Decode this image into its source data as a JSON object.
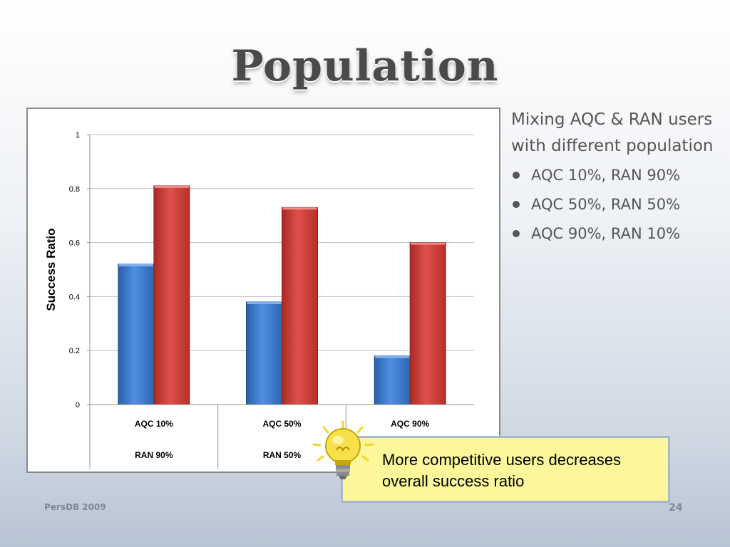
{
  "slide": {
    "title": "Population",
    "footer_left": "PersDB 2009",
    "page_number": "24"
  },
  "bullets": {
    "intro": "Mixing AQC & RAN users with different population",
    "items": [
      "AQC 10%, RAN 90%",
      "AQC 50%, RAN 50%",
      "AQC 90%, RAN 10%"
    ]
  },
  "callout": {
    "text": "More competitive users decreases overall success ratio",
    "icon": "lightbulb-icon"
  },
  "chart_data": {
    "type": "bar",
    "ylabel": "Success Ratio",
    "xlabel": "",
    "ylim": [
      0,
      1
    ],
    "yticks": [
      "0",
      "0.2",
      "0.4",
      "0.6",
      "0.8",
      "1"
    ],
    "categories": [
      {
        "top": "AQC 10%",
        "bottom": "RAN 90%"
      },
      {
        "top": "AQC 50%",
        "bottom": "RAN 50%"
      },
      {
        "top": "AQC 90%",
        "bottom": "RAN 10%"
      }
    ],
    "series": [
      {
        "values": [
          0.52,
          0.38,
          0.18
        ],
        "color": "#3a78c8"
      },
      {
        "values": [
          0.81,
          0.73,
          0.6
        ],
        "color": "#d03a36"
      }
    ],
    "grid": true,
    "legend": "none"
  }
}
